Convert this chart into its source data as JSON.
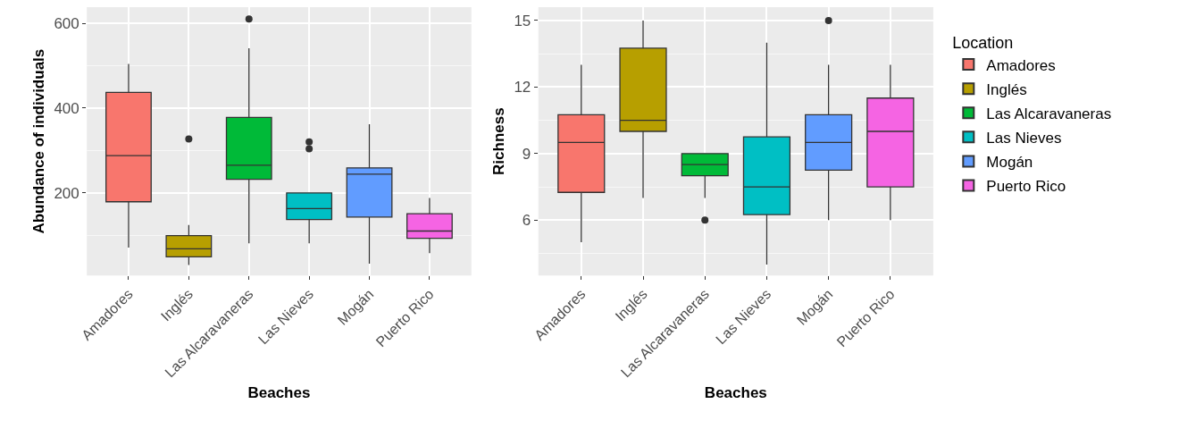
{
  "chart_data": [
    {
      "type": "box",
      "xlabel": "Beaches",
      "ylabel": "Abundance of individuals",
      "categories": [
        "Amadores",
        "Inglés",
        "Las Alcaravaneras",
        "Las Nieves",
        "Mogán",
        "Puerto Rico"
      ],
      "ylim": [
        5,
        638
      ],
      "yticks": [
        200,
        400,
        600
      ],
      "grid": true,
      "legend": false,
      "series": [
        {
          "color": "#f8766d",
          "boxes": [
            {
              "low": 71,
              "q1": 179,
              "median": 288,
              "q3": 437,
              "high": 504
            },
            null,
            null,
            null,
            null,
            null
          ]
        },
        {
          "color": "#b79f00",
          "boxes": [
            null,
            {
              "low": 30,
              "q1": 49,
              "median": 68,
              "q3": 99,
              "high": 124,
              "outliers": [
                327
              ]
            },
            null,
            null,
            null,
            null
          ]
        },
        {
          "color": "#00ba38",
          "boxes": [
            null,
            null,
            {
              "low": 81,
              "q1": 232,
              "median": 265,
              "q3": 378,
              "high": 541,
              "outliers": [
                610
              ]
            },
            null,
            null,
            null
          ]
        },
        {
          "color": "#00bfc4",
          "boxes": [
            null,
            null,
            null,
            {
              "low": 81,
              "q1": 137,
              "median": 163,
              "q3": 200,
              "high": 200,
              "outliers": [
                304,
                320
              ]
            },
            null,
            null
          ]
        },
        {
          "color": "#619cff",
          "boxes": [
            null,
            null,
            null,
            null,
            {
              "low": 33,
              "q1": 143,
              "median": 244,
              "q3": 259,
              "high": 362
            },
            null
          ]
        },
        {
          "color": "#f564e3",
          "boxes": [
            null,
            null,
            null,
            null,
            null,
            {
              "low": 58,
              "q1": 93,
              "median": 110,
              "q3": 151,
              "high": 188
            }
          ]
        }
      ]
    },
    {
      "type": "box",
      "xlabel": "Beaches",
      "ylabel": "Richness",
      "legend_title": "Location",
      "categories": [
        "Amadores",
        "Inglés",
        "Las Alcaravaneras",
        "Las Nieves",
        "Mogán",
        "Puerto Rico"
      ],
      "ylim": [
        3.5,
        15.6
      ],
      "yticks": [
        6,
        9,
        12,
        15
      ],
      "grid": true,
      "legend": "right",
      "series": [
        {
          "name": "Amadores",
          "color": "#f8766d",
          "boxes": [
            {
              "low": 5,
              "q1": 7.25,
              "median": 9.5,
              "q3": 10.75,
              "high": 13
            },
            null,
            null,
            null,
            null,
            null
          ]
        },
        {
          "name": "Inglés",
          "color": "#b79f00",
          "boxes": [
            null,
            {
              "low": 7,
              "q1": 10,
              "median": 10.5,
              "q3": 13.75,
              "high": 15
            },
            null,
            null,
            null,
            null
          ]
        },
        {
          "name": "Las Alcaravaneras",
          "color": "#00ba38",
          "boxes": [
            null,
            null,
            {
              "low": 7,
              "q1": 8,
              "median": 8.5,
              "q3": 9,
              "high": 9,
              "outliers": [
                6
              ]
            },
            null,
            null,
            null
          ]
        },
        {
          "name": "Las Nieves",
          "color": "#00bfc4",
          "boxes": [
            null,
            null,
            null,
            {
              "low": 4,
              "q1": 6.25,
              "median": 7.5,
              "q3": 9.75,
              "high": 14
            },
            null,
            null
          ]
        },
        {
          "name": "Mogán",
          "color": "#619cff",
          "boxes": [
            null,
            null,
            null,
            null,
            {
              "low": 6,
              "q1": 8.25,
              "median": 9.5,
              "q3": 10.75,
              "high": 13,
              "outliers": [
                15
              ]
            },
            null
          ]
        },
        {
          "name": "Puerto Rico",
          "color": "#f564e3",
          "boxes": [
            null,
            null,
            null,
            null,
            null,
            {
              "low": 6,
              "q1": 7.5,
              "median": 10,
              "q3": 11.5,
              "high": 13
            }
          ]
        }
      ]
    }
  ]
}
